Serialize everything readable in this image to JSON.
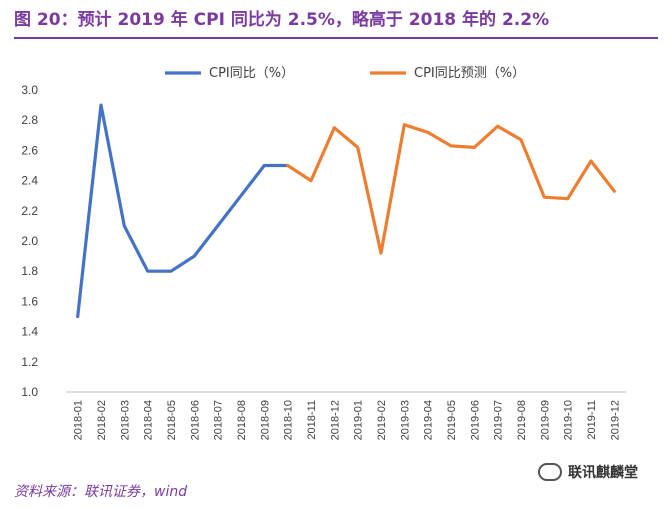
{
  "figure": {
    "title": "图 20：预计 2019 年 CPI 同比为 2.5%，略高于 2018 年的 2.2%",
    "source": "资料来源：联讯证券，wind",
    "watermark": "联讯麒麟堂",
    "watermark_icon": "wechat-icon",
    "title_color": "#7b3aa0"
  },
  "chart_data": {
    "type": "line",
    "categories": [
      "2018-01",
      "2018-02",
      "2018-03",
      "2018-04",
      "2018-05",
      "2018-06",
      "2018-07",
      "2018-08",
      "2018-09",
      "2018-10",
      "2018-11",
      "2018-12",
      "2019-01",
      "2019-02",
      "2019-03",
      "2019-04",
      "2019-05",
      "2019-06",
      "2019-07",
      "2019-08",
      "2019-09",
      "2019-10",
      "2019-11",
      "2019-12"
    ],
    "series": [
      {
        "name": "CPI同比（%）",
        "color": "#4472c4",
        "values": [
          1.5,
          2.9,
          2.1,
          1.8,
          1.8,
          1.9,
          2.1,
          2.3,
          2.5,
          2.5,
          null,
          null,
          null,
          null,
          null,
          null,
          null,
          null,
          null,
          null,
          null,
          null,
          null,
          null
        ]
      },
      {
        "name": "CPI同比预测（%）",
        "color": "#ed7d31",
        "values": [
          null,
          null,
          null,
          null,
          null,
          null,
          null,
          null,
          null,
          2.5,
          2.4,
          2.75,
          2.62,
          1.92,
          2.77,
          2.72,
          2.63,
          2.62,
          2.76,
          2.67,
          2.29,
          2.28,
          2.53,
          2.33
        ]
      }
    ],
    "y_ticks": [
      "1.0",
      "1.2",
      "1.4",
      "1.6",
      "1.8",
      "2.0",
      "2.2",
      "2.4",
      "2.6",
      "2.8",
      "3.0"
    ],
    "ylim": [
      1.0,
      3.0
    ],
    "grid": false,
    "legend_position": "top-center",
    "xlabel": "",
    "ylabel": ""
  }
}
